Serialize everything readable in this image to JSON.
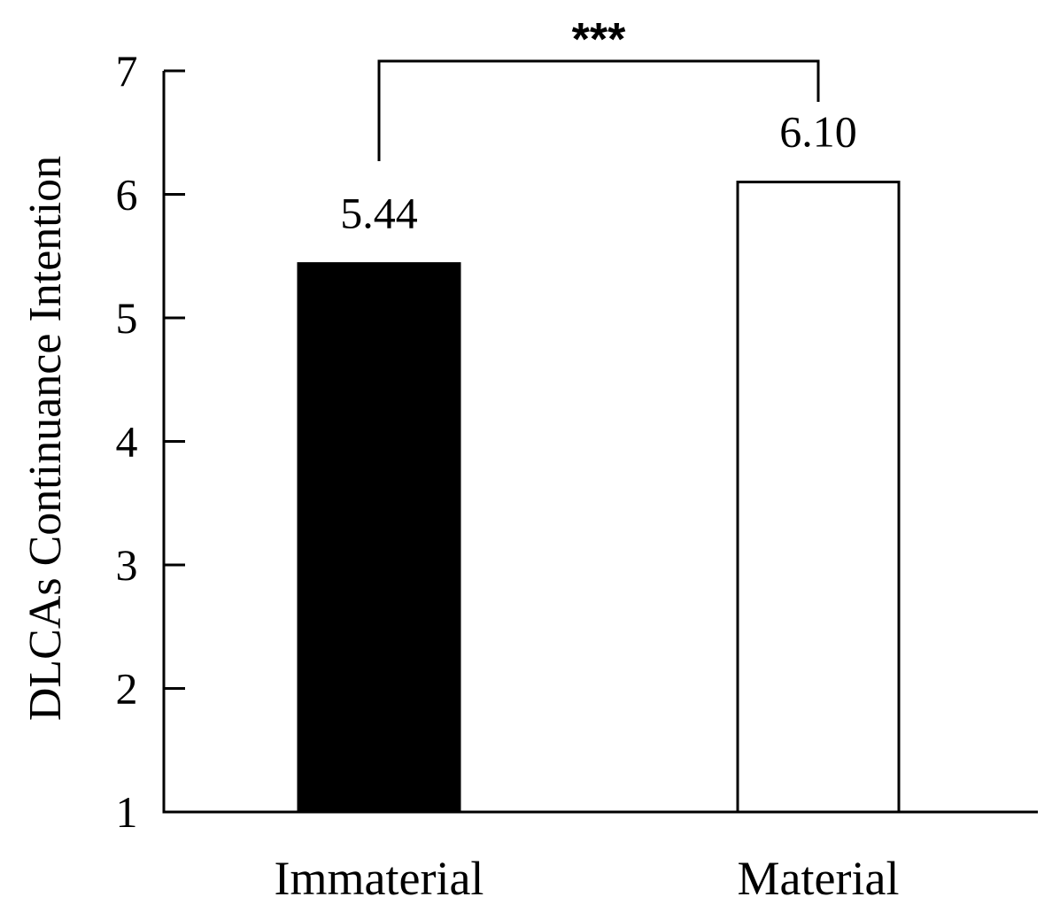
{
  "chart_data": {
    "type": "bar",
    "categories": [
      "Immaterial",
      "Material"
    ],
    "values": [
      5.44,
      6.1
    ],
    "value_labels": [
      "5.44",
      "6.10"
    ],
    "bar_fills": [
      "#000000",
      "#ffffff"
    ],
    "ylabel": "DLCAs Continuance Intention",
    "xlabel": "",
    "ylim": [
      1,
      7
    ],
    "yticks": [
      "1",
      "2",
      "3",
      "4",
      "5",
      "6",
      "7"
    ],
    "grid": false,
    "significance": {
      "between": [
        "Immaterial",
        "Material"
      ],
      "label": "***"
    }
  }
}
